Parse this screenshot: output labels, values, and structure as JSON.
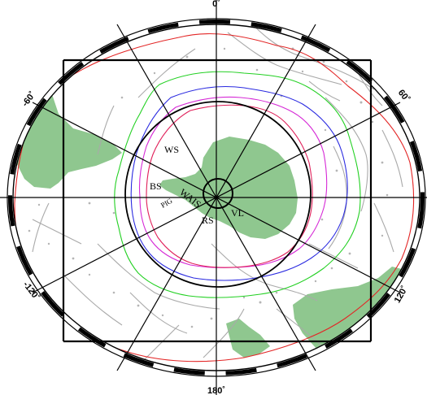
{
  "map": {
    "projection": "polar stereographic, south pole",
    "colors": {
      "land": "#8fc78f",
      "bathymetry": "#a9a9a9",
      "frame": "#000000",
      "contour_red": "#e32626",
      "contour_green": "#22d022",
      "contour_blue": "#2a2ae0",
      "contour_magenta": "#d62ad6",
      "contour_crimson": "#e0205a"
    },
    "longitude_labels": {
      "top": "0˚",
      "upper_left": "-60˚",
      "upper_right": "60˚",
      "lower_left": "-120˚",
      "lower_right": "120˚",
      "bottom": "180˚"
    },
    "region_labels": {
      "weddell_sea": "WS",
      "bellingshausen_sea": "BS",
      "wais": "WAIS",
      "pine_island_glacier": "PIG",
      "ross_sea": "RS",
      "victoria_land": "VL"
    }
  }
}
